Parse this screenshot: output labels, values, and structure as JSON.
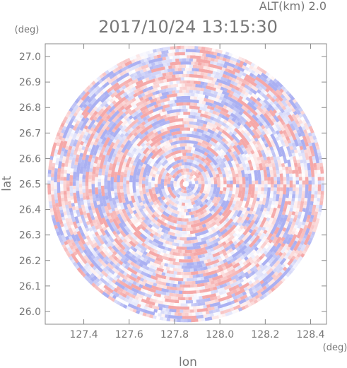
{
  "chart_data": {
    "type": "heatmap",
    "title": "2017/10/24 13:15:30",
    "altitude_label": "ALT(km) 2.0",
    "xlabel": "lon",
    "ylabel": "lat",
    "x_unit": "(deg)",
    "y_unit": "(deg)",
    "xlim": [
      127.23,
      128.47
    ],
    "ylim": [
      25.95,
      27.05
    ],
    "x_ticks": [
      127.4,
      127.6,
      127.8,
      128.0,
      128.2,
      128.4
    ],
    "x_tick_labels": [
      "127.4",
      "127.6",
      "127.8",
      "128.0",
      "128.2",
      "128.4"
    ],
    "y_ticks": [
      26.0,
      26.1,
      26.2,
      26.3,
      26.4,
      26.5,
      26.6,
      26.7,
      26.8,
      26.9,
      27.0
    ],
    "y_tick_labels": [
      "26.0",
      "26.1",
      "26.2",
      "26.3",
      "26.4",
      "26.5",
      "26.6",
      "26.7",
      "26.8",
      "26.9",
      "27.0"
    ],
    "center": {
      "lon": 127.85,
      "lat": 26.5
    },
    "max_range_deg": {
      "lon": 0.61,
      "lat": 0.545
    },
    "color_scale": {
      "negative": "#aab0f2",
      "zero": "#ffffff",
      "positive": "#f5a8a8"
    },
    "grid": false
  }
}
